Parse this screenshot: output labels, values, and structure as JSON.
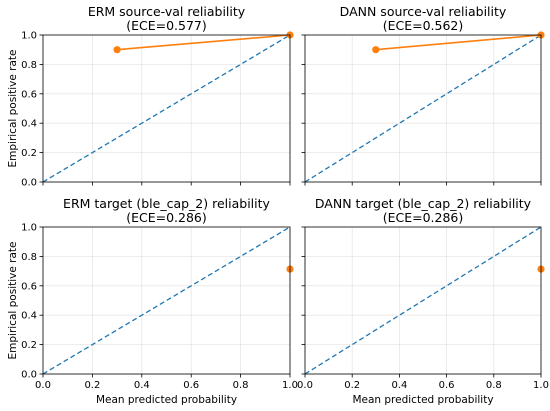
{
  "chart_data": [
    {
      "type": "line",
      "title_line1": "ERM source-val reliability",
      "title_line2": "(ECE=0.577)",
      "xlabel": "",
      "ylabel": "Empirical positive rate",
      "xlim": [
        0,
        1
      ],
      "ylim": [
        0,
        1
      ],
      "grid": true,
      "show_x_ticklabels": false,
      "show_y_ticklabels": true,
      "reference_line": {
        "x": [
          0,
          1
        ],
        "y": [
          0,
          1
        ],
        "style": "dashed",
        "color": "#1f77b4"
      },
      "series": [
        {
          "x": [
            0.3,
            1.0
          ],
          "y": [
            0.9,
            1.0
          ],
          "color": "#ff7f0e",
          "marker": "circle"
        }
      ]
    },
    {
      "type": "line",
      "title_line1": "DANN source-val reliability",
      "title_line2": "(ECE=0.562)",
      "xlabel": "",
      "ylabel": "",
      "xlim": [
        0,
        1
      ],
      "ylim": [
        0,
        1
      ],
      "grid": true,
      "show_x_ticklabels": false,
      "show_y_ticklabels": false,
      "reference_line": {
        "x": [
          0,
          1
        ],
        "y": [
          0,
          1
        ],
        "style": "dashed",
        "color": "#1f77b4"
      },
      "series": [
        {
          "x": [
            0.3,
            1.0
          ],
          "y": [
            0.9,
            1.0
          ],
          "color": "#ff7f0e",
          "marker": "circle"
        }
      ]
    },
    {
      "type": "line",
      "title_line1": "ERM target (ble_cap_2) reliability",
      "title_line2": "(ECE=0.286)",
      "xlabel": "Mean predicted probability",
      "ylabel": "Empirical positive rate",
      "xlim": [
        0,
        1
      ],
      "ylim": [
        0,
        1
      ],
      "grid": true,
      "show_x_ticklabels": true,
      "show_y_ticklabels": true,
      "reference_line": {
        "x": [
          0,
          1
        ],
        "y": [
          0,
          1
        ],
        "style": "dashed",
        "color": "#1f77b4"
      },
      "series": [
        {
          "x": [
            1.0
          ],
          "y": [
            0.714
          ],
          "color": "#ff7f0e",
          "marker": "circle"
        }
      ]
    },
    {
      "type": "line",
      "title_line1": "DANN target (ble_cap_2) reliability",
      "title_line2": "(ECE=0.286)",
      "xlabel": "Mean predicted probability",
      "ylabel": "",
      "xlim": [
        0,
        1
      ],
      "ylim": [
        0,
        1
      ],
      "grid": true,
      "show_x_ticklabels": true,
      "show_y_ticklabels": false,
      "reference_line": {
        "x": [
          0,
          1
        ],
        "y": [
          0,
          1
        ],
        "style": "dashed",
        "color": "#1f77b4"
      },
      "series": [
        {
          "x": [
            1.0
          ],
          "y": [
            0.714
          ],
          "color": "#ff7f0e",
          "marker": "circle"
        }
      ]
    }
  ],
  "tick_values": [
    0.0,
    0.2,
    0.4,
    0.6,
    0.8,
    1.0
  ],
  "tick_labels": [
    "0.0",
    "0.2",
    "0.4",
    "0.6",
    "0.8",
    "1.0"
  ]
}
